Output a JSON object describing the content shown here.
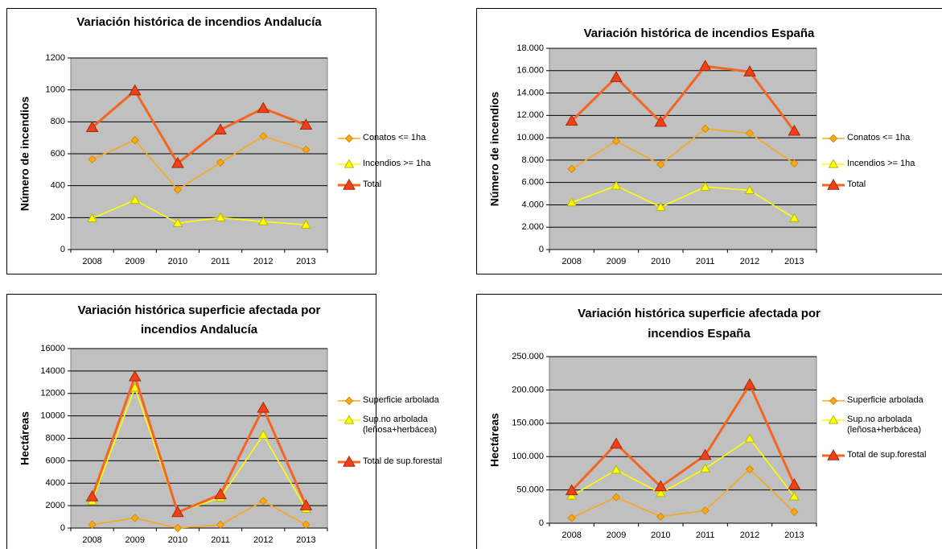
{
  "chart_data": [
    {
      "type": "line",
      "title": "Variación histórica de incendios Andalucía",
      "y_label": "Número de incendios",
      "categories": [
        "2008",
        "2009",
        "2010",
        "2011",
        "2012",
        "2013"
      ],
      "ylim": [
        0,
        1200
      ],
      "yticks": [
        0,
        200,
        400,
        600,
        800,
        1000,
        1200
      ],
      "grid": true,
      "series": [
        {
          "name": "Conatos <= 1ha",
          "color": "#F7A81B",
          "marker": "diamond",
          "values": [
            565,
            685,
            375,
            545,
            710,
            625
          ]
        },
        {
          "name": "Incendios >= 1ha",
          "color": "#FFFF00",
          "marker": "triangle",
          "values": [
            195,
            310,
            165,
            200,
            175,
            155
          ]
        },
        {
          "name": "Total",
          "color": "#F26522",
          "marker": "triangle",
          "values": [
            765,
            995,
            540,
            750,
            885,
            780
          ]
        }
      ]
    },
    {
      "type": "line",
      "title": "Variación histórica de incendios España",
      "y_label": "Número de incendios",
      "categories": [
        "2008",
        "2009",
        "2010",
        "2011",
        "2012",
        "2013"
      ],
      "ylim": [
        0,
        18000
      ],
      "yticks": [
        0,
        {
          "value": 2000,
          "label": "2.000"
        },
        {
          "value": 4000,
          "label": "4.000"
        },
        {
          "value": 6000,
          "label": "6.000"
        },
        {
          "value": 8000,
          "label": "8.000"
        },
        {
          "value": 10000,
          "label": "10.000"
        },
        {
          "value": 12000,
          "label": "12.000"
        },
        {
          "value": 14000,
          "label": "14.000"
        },
        {
          "value": 16000,
          "label": "16.000"
        },
        {
          "value": 18000,
          "label": "18.000"
        }
      ],
      "grid": true,
      "series": [
        {
          "name": "Conatos <= 1ha",
          "color": "#F7A81B",
          "marker": "diamond",
          "values": [
            7200,
            9700,
            7600,
            10800,
            10400,
            7700
          ]
        },
        {
          "name": "Incendios >= 1ha",
          "color": "#FFFF00",
          "marker": "triangle",
          "values": [
            4200,
            5700,
            3800,
            5600,
            5300,
            2800
          ]
        },
        {
          "name": "Total",
          "color": "#F26522",
          "marker": "triangle",
          "values": [
            11500,
            15400,
            11400,
            16400,
            15900,
            10600
          ]
        }
      ]
    },
    {
      "type": "line",
      "title": [
        "Variación histórica superficie afectada por",
        "incendios Andalucía"
      ],
      "y_label": "Hectáreas",
      "categories": [
        "2008",
        "2009",
        "2010",
        "2011",
        "2012",
        "2013"
      ],
      "ylim": [
        0,
        16000
      ],
      "yticks": [
        0,
        2000,
        4000,
        6000,
        8000,
        10000,
        12000,
        14000,
        16000
      ],
      "grid": true,
      "series": [
        {
          "name": "Superficie arbolada",
          "color": "#F7A81B",
          "marker": "diamond",
          "values": [
            300,
            900,
            0,
            300,
            2400,
            300
          ]
        },
        {
          "name": "Sup.no arbolada (leñosa+herbácea)",
          "color": "#FFFF00",
          "marker": "triangle",
          "values": [
            2400,
            12500,
            1400,
            2700,
            8300,
            1700
          ]
        },
        {
          "name": "Total de sup.forestal",
          "color": "#F26522",
          "marker": "triangle",
          "values": [
            2800,
            13500,
            1400,
            3000,
            10700,
            2000
          ]
        }
      ]
    },
    {
      "type": "line",
      "title": [
        "Variación histórica superficie afectada por",
        "incendios España"
      ],
      "y_label": "Hectáreas",
      "categories": [
        "2008",
        "2009",
        "2010",
        "2011",
        "2012",
        "2013"
      ],
      "ylim": [
        0,
        250000
      ],
      "yticks": [
        0,
        {
          "value": 50000,
          "label": "50.000"
        },
        {
          "value": 100000,
          "label": "100.000"
        },
        {
          "value": 150000,
          "label": "150.000"
        },
        {
          "value": 200000,
          "label": "200.000"
        },
        {
          "value": 250000,
          "label": "250.000"
        }
      ],
      "grid": true,
      "series": [
        {
          "name": "Superficie arbolada",
          "color": "#F7A81B",
          "marker": "diamond",
          "values": [
            8000,
            39000,
            10000,
            19000,
            81000,
            17000
          ]
        },
        {
          "name": "Sup.no arbolada (leñosa+herbácea)",
          "color": "#FFFF00",
          "marker": "triangle",
          "values": [
            41000,
            80000,
            45000,
            82000,
            127000,
            40000
          ]
        },
        {
          "name": "Total de sup.forestal",
          "color": "#F26522",
          "marker": "triangle",
          "values": [
            49000,
            119000,
            55000,
            102000,
            208000,
            58000
          ]
        }
      ]
    }
  ]
}
